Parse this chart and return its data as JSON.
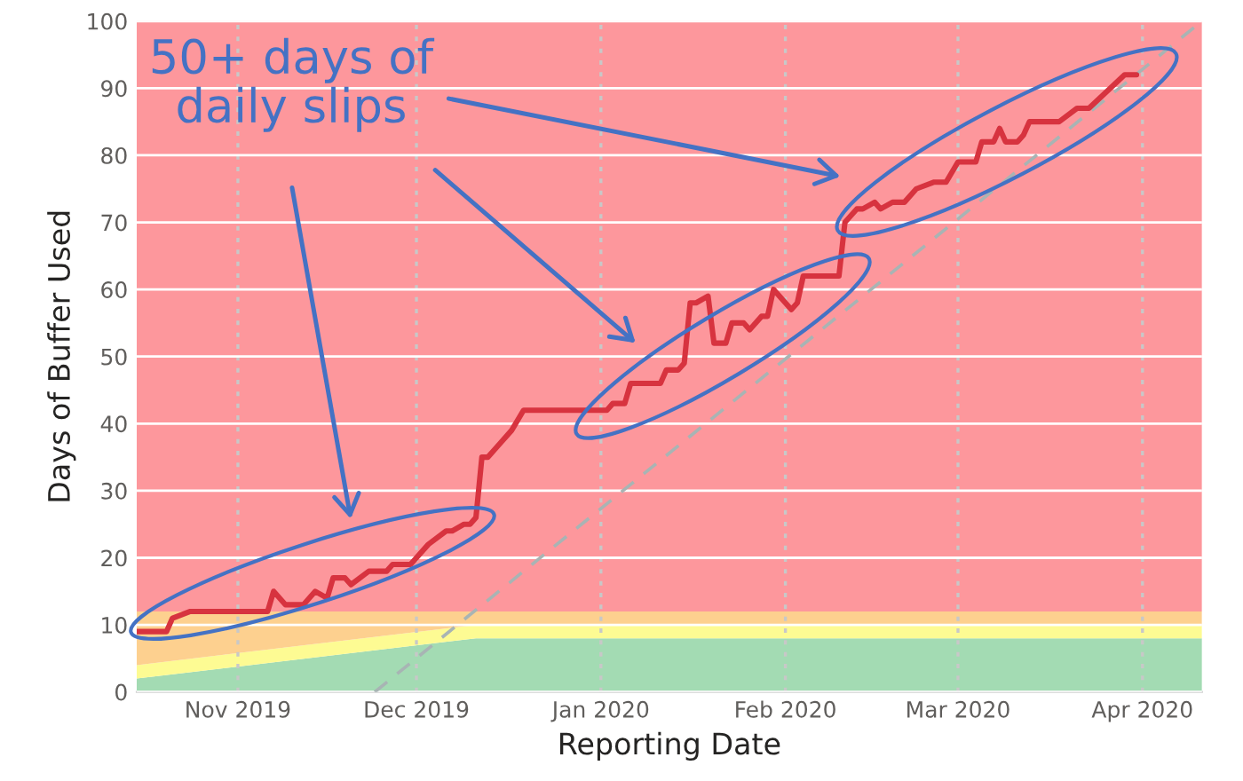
{
  "chart_data": {
    "type": "area",
    "xlabel": "Reporting Date",
    "ylabel": "Days of Buffer Used",
    "stacked": true,
    "grid": true,
    "xlim": [
      "2019-10-15",
      "2020-04-11"
    ],
    "xticks": [
      {
        "value": "2019-11-01",
        "label": "Nov 2019"
      },
      {
        "value": "2019-12-01",
        "label": "Dec 2019"
      },
      {
        "value": "2020-01-01",
        "label": "Jan 2020"
      },
      {
        "value": "2020-02-01",
        "label": "Feb 2020"
      },
      {
        "value": "2020-03-01",
        "label": "Mar 2020"
      },
      {
        "value": "2020-04-01",
        "label": "Apr 2020"
      }
    ],
    "ylim": [
      0,
      100
    ],
    "yticks": [
      0,
      10,
      20,
      30,
      40,
      50,
      60,
      70,
      80,
      90,
      100
    ],
    "annotations": [
      "50+ days of\ndaily slips"
    ],
    "series": [
      {
        "color": "#a3dbb3",
        "x": [
          "2019-10-15",
          "2019-12-11",
          "2020-04-11"
        ],
        "values": [
          2,
          8,
          8
        ]
      },
      {
        "color": "#fdfb93",
        "x": [
          "2019-10-15",
          "2019-12-11",
          "2020-04-11"
        ],
        "values": [
          2,
          2,
          2
        ]
      },
      {
        "color": "#fdd08f",
        "x": [
          "2019-10-15",
          "2019-12-11",
          "2020-04-11"
        ],
        "values": [
          8,
          2,
          2
        ]
      },
      {
        "color": "#fd979c",
        "x": [
          "2019-10-15",
          "2019-12-11",
          "2020-04-11"
        ],
        "values": [
          88,
          88,
          88
        ]
      },
      {
        "type": "line",
        "color": "#a8b4b4",
        "line_style": "dashed",
        "x": [
          "2019-11-24",
          "2020-04-11"
        ],
        "values": [
          0,
          100
        ]
      },
      {
        "type": "step",
        "color": "#d7333f",
        "x": [
          "2019-10-15",
          "2019-10-20",
          "2019-10-21",
          "2019-10-24",
          "2019-11-06",
          "2019-11-07",
          "2019-11-09",
          "2019-11-12",
          "2019-11-14",
          "2019-11-16",
          "2019-11-17",
          "2019-11-19",
          "2019-11-20",
          "2019-11-23",
          "2019-11-26",
          "2019-11-27",
          "2019-11-30",
          "2019-12-03",
          "2019-12-06",
          "2019-12-07",
          "2019-12-09",
          "2019-12-10",
          "2019-12-11",
          "2019-12-12",
          "2019-12-13",
          "2019-12-15",
          "2019-12-17",
          "2019-12-19",
          "2020-01-02",
          "2020-01-03",
          "2020-01-05",
          "2020-01-06",
          "2020-01-11",
          "2020-01-12",
          "2020-01-14",
          "2020-01-15",
          "2020-01-16",
          "2020-01-17",
          "2020-01-19",
          "2020-01-20",
          "2020-01-22",
          "2020-01-23",
          "2020-01-25",
          "2020-01-26",
          "2020-01-28",
          "2020-01-29",
          "2020-01-30",
          "2020-02-01",
          "2020-02-02",
          "2020-02-03",
          "2020-02-04",
          "2020-02-10",
          "2020-02-11",
          "2020-02-13",
          "2020-02-14",
          "2020-02-16",
          "2020-02-17",
          "2020-02-19",
          "2020-02-21",
          "2020-02-23",
          "2020-02-26",
          "2020-02-28",
          "2020-03-01",
          "2020-03-04",
          "2020-03-05",
          "2020-03-07",
          "2020-03-08",
          "2020-03-09",
          "2020-03-11",
          "2020-03-12",
          "2020-03-13",
          "2020-03-18",
          "2020-03-21",
          "2020-03-23",
          "2020-03-29",
          "2020-03-31"
        ],
        "values": [
          9,
          9,
          11,
          12,
          12,
          15,
          13,
          13,
          15,
          14,
          17,
          17,
          16,
          18,
          18,
          19,
          19,
          22,
          24,
          24,
          25,
          25,
          26,
          35,
          35,
          37,
          39,
          42,
          42,
          43,
          43,
          46,
          46,
          48,
          48,
          49,
          58,
          58,
          59,
          52,
          52,
          55,
          55,
          54,
          56,
          56,
          60,
          58,
          57,
          58,
          62,
          62,
          70,
          72,
          72,
          73,
          72,
          73,
          73,
          75,
          76,
          76,
          79,
          79,
          82,
          82,
          84,
          82,
          82,
          83,
          85,
          85,
          87,
          87,
          92,
          92
        ]
      }
    ]
  }
}
